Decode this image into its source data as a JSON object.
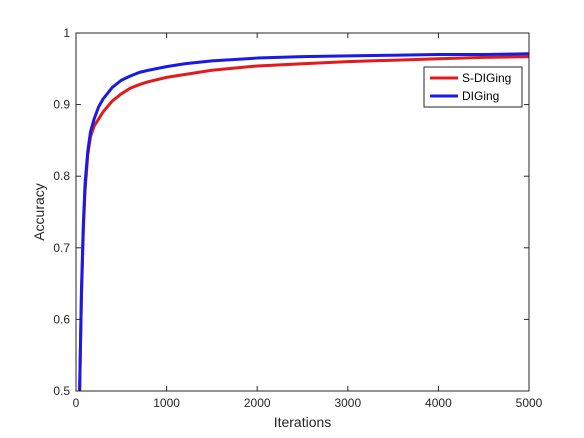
{
  "chart_data": {
    "type": "line",
    "title": "",
    "xlabel": "Iterations",
    "ylabel": "Accuracy",
    "xlim": [
      0,
      5000
    ],
    "ylim": [
      0.5,
      1
    ],
    "xticks": [
      0,
      1000,
      2000,
      3000,
      4000,
      5000
    ],
    "yticks": [
      0.5,
      0.6,
      0.7,
      0.8,
      0.9,
      1
    ],
    "xtick_labels": [
      "0",
      "1000",
      "2000",
      "3000",
      "4000",
      "5000"
    ],
    "ytick_labels": [
      "0.5",
      "0.6",
      "0.7",
      "0.8",
      "0.9",
      "1"
    ],
    "grid": false,
    "legend_position": "top-right",
    "series": [
      {
        "name": "S-DIGing",
        "color": "#e31a1c",
        "x": [
          40,
          60,
          80,
          100,
          130,
          160,
          200,
          250,
          300,
          400,
          500,
          600,
          700,
          800,
          1000,
          1200,
          1500,
          2000,
          2500,
          3000,
          3500,
          4000,
          4500,
          5000
        ],
        "y": [
          0.5,
          0.63,
          0.72,
          0.78,
          0.83,
          0.855,
          0.87,
          0.88,
          0.89,
          0.905,
          0.915,
          0.923,
          0.928,
          0.932,
          0.938,
          0.942,
          0.948,
          0.954,
          0.957,
          0.96,
          0.962,
          0.964,
          0.966,
          0.967
        ]
      },
      {
        "name": "DIGing",
        "color": "#1a1ae6",
        "x": [
          40,
          60,
          80,
          100,
          130,
          160,
          200,
          250,
          300,
          400,
          500,
          600,
          700,
          800,
          1000,
          1200,
          1500,
          2000,
          2500,
          3000,
          3500,
          4000,
          4500,
          5000
        ],
        "y": [
          0.5,
          0.64,
          0.73,
          0.79,
          0.835,
          0.862,
          0.88,
          0.897,
          0.908,
          0.924,
          0.934,
          0.94,
          0.945,
          0.948,
          0.953,
          0.957,
          0.961,
          0.965,
          0.967,
          0.968,
          0.969,
          0.97,
          0.97,
          0.971
        ]
      }
    ]
  }
}
